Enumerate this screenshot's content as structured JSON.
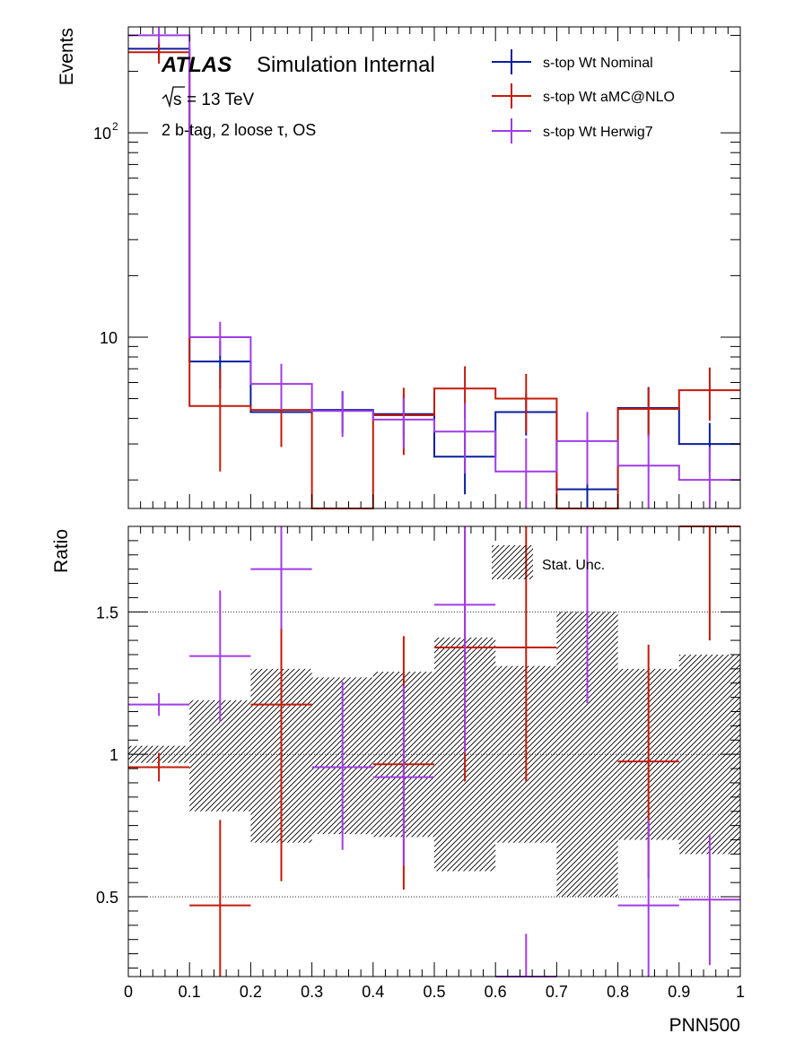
{
  "chart_data": [
    {
      "panel": "main",
      "type": "histogram",
      "ylabel": "Events",
      "yscale": "log",
      "ylim": [
        1.45,
        330
      ],
      "xlim": [
        0,
        1
      ],
      "bin_edges": [
        0,
        0.1,
        0.2,
        0.3,
        0.4,
        0.5,
        0.6,
        0.7,
        0.8,
        0.9,
        1.0
      ],
      "y_tick_labels": [
        {
          "value": 10,
          "base": "10",
          "exp": ""
        },
        {
          "value": 100,
          "base": "10",
          "exp": "2"
        }
      ],
      "annotations": {
        "atlas": "ATLAS",
        "status": "Simulation Internal",
        "energy": "= 13 TeV",
        "sqrt_s": "s",
        "region": "2 b-tag, 2 loose τ, OS"
      },
      "legend_position": "top-right",
      "series": [
        {
          "name": "s-top Wt Nominal",
          "color": "#0a1ea0",
          "values": [
            258,
            7.6,
            4.3,
            4.4,
            4.2,
            2.6,
            4.3,
            1.8,
            4.5,
            3.0
          ],
          "errors_up": [
            30,
            2.0,
            1.0,
            1.0,
            1.0,
            0.9,
            1.0,
            0.7,
            1.2,
            0.8
          ],
          "errors_down": [
            30,
            2.0,
            1.0,
            1.0,
            1.0,
            0.9,
            1.0,
            0.7,
            1.2,
            0.8
          ]
        },
        {
          "name": "s-top Wt aMC@NLO",
          "color": "#c41a0a",
          "values": [
            248,
            4.6,
            4.4,
            1.45,
            4.15,
            5.6,
            5.0,
            1.45,
            4.45,
            5.5
          ],
          "errors_up": [
            30,
            2.4,
            1.5,
            0,
            1.5,
            1.6,
            1.6,
            0,
            1.2,
            1.6
          ],
          "errors_down": [
            30,
            2.4,
            1.5,
            0,
            1.5,
            1.6,
            1.6,
            0,
            1.2,
            1.6
          ]
        },
        {
          "name": "s-top Wt Herwig7",
          "color": "#a03ce6",
          "values": [
            300,
            10.0,
            5.9,
            4.35,
            3.95,
            3.45,
            2.2,
            3.1,
            2.35,
            2.0
          ],
          "errors_up": [
            28,
            1.9,
            1.5,
            1.1,
            1.1,
            1.3,
            1.0,
            1.2,
            1.0,
            0.9
          ],
          "errors_down": [
            28,
            1.9,
            1.5,
            1.1,
            1.1,
            1.3,
            1.0,
            1.2,
            1.0,
            0.9
          ]
        }
      ]
    },
    {
      "panel": "ratio",
      "type": "histogram",
      "xlabel": "PNN500",
      "ylabel": "Ratio",
      "ylim": [
        0.22,
        1.8
      ],
      "xlim": [
        0,
        1
      ],
      "bin_edges": [
        0,
        0.1,
        0.2,
        0.3,
        0.4,
        0.5,
        0.6,
        0.7,
        0.8,
        0.9,
        1.0
      ],
      "x_tick_labels": [
        "0",
        "0.1",
        "0.2",
        "0.3",
        "0.4",
        "0.5",
        "0.6",
        "0.7",
        "0.8",
        "0.9",
        "1"
      ],
      "y_tick_labels": [
        "0.5",
        "1",
        "1.5"
      ],
      "gridlines": [
        0.5,
        1.0,
        1.5
      ],
      "stat_band": {
        "label": "Stat. Unc.",
        "low": [
          0.97,
          0.8,
          0.69,
          0.72,
          0.71,
          0.59,
          0.69,
          0.5,
          0.7,
          0.65
        ],
        "high": [
          1.03,
          1.19,
          1.3,
          1.27,
          1.29,
          1.41,
          1.31,
          1.5,
          1.3,
          1.35
        ]
      },
      "series": [
        {
          "name": "s-top Wt aMC@NLO",
          "color": "#c41a0a",
          "values": [
            0.955,
            0.47,
            1.175,
            0,
            0.965,
            1.375,
            1.375,
            0,
            0.975,
            1.8
          ],
          "errors_up": [
            0.05,
            0.3,
            0.27,
            0,
            0.45,
            0.5,
            0.5,
            0,
            0.41,
            0.5
          ],
          "errors_down": [
            0.05,
            0.3,
            0.62,
            0,
            0.44,
            0.47,
            0.47,
            0,
            0.41,
            0.4
          ]
        },
        {
          "name": "s-top Wt Herwig7",
          "color": "#a03ce6",
          "values": [
            1.175,
            1.345,
            1.65,
            0.955,
            0.92,
            1.525,
            0.22,
            1.85,
            0.47,
            0.49
          ],
          "errors_up": [
            0.04,
            0.23,
            0.4,
            0.3,
            0.32,
            0.4,
            0.15,
            0.3,
            0.3,
            0.23
          ],
          "errors_down": [
            0.04,
            0.23,
            0.21,
            0.29,
            0.31,
            0.52,
            0,
            0.67,
            0.3,
            0.23
          ]
        }
      ]
    }
  ]
}
